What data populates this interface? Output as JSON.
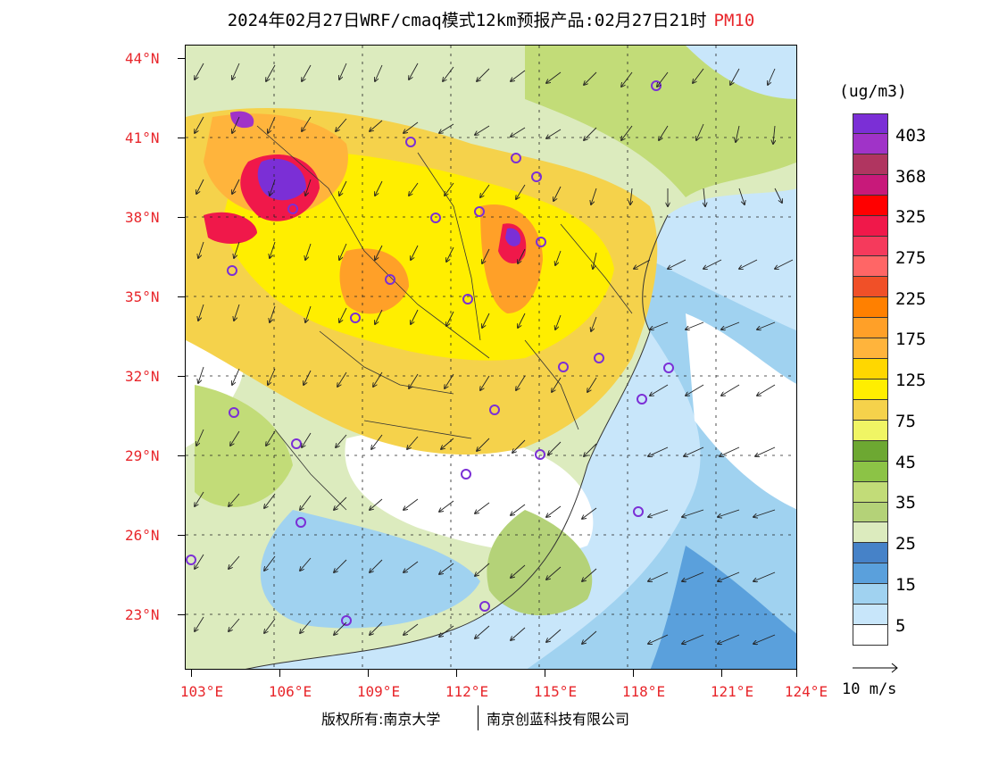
{
  "title": {
    "main": "2024年02月27日WRF/cmaq模式12km预报产品:02月27日21时",
    "pollutant": "PM10"
  },
  "axes": {
    "lat_labels": [
      "44°N",
      "41°N",
      "38°N",
      "35°N",
      "32°N",
      "29°N",
      "26°N",
      "23°N"
    ],
    "lon_labels": [
      "103°E",
      "106°E",
      "109°E",
      "112°E",
      "115°E",
      "118°E",
      "121°E",
      "124°E"
    ]
  },
  "colorbar": {
    "units": "(ug/m3)",
    "colors": [
      "#7b2fd6",
      "#a033c8",
      "#b03560",
      "#c8197a",
      "#ff0000",
      "#f0184a",
      "#f53a5c",
      "#ff6666",
      "#f05028",
      "#ff8000",
      "#ffa028",
      "#ffb43c",
      "#ffd700",
      "#ffee00",
      "#f5d24b",
      "#f0f564",
      "#6da832",
      "#8cc346",
      "#c2dc78",
      "#b4d278",
      "#dcebbe",
      "#4682c8",
      "#5aa0dc",
      "#a0d2f0",
      "#c8e6fa",
      "#ffffff"
    ],
    "labels": [
      "403",
      "368",
      "325",
      "275",
      "225",
      "175",
      "125",
      "75",
      "45",
      "35",
      "25",
      "15",
      "5"
    ]
  },
  "wind_reference": {
    "label": "10 m/s"
  },
  "footer": {
    "left": "版权所有:南京大学",
    "right": "南京创蓝科技有限公司"
  },
  "map": {
    "background_colors": {
      "sea_clean": "#ffffff",
      "light_blue": "#c8e6fa",
      "blue": "#8cc8f0",
      "mid_blue": "#5aa0dc",
      "green_light": "#dcebbe",
      "green": "#b4d278",
      "yellow_green": "#f0f564",
      "yellow": "#ffee00",
      "yellow2": "#f5d24b",
      "orange": "#ffa028",
      "red": "#f0184a",
      "purple": "#7b2fd6"
    }
  }
}
